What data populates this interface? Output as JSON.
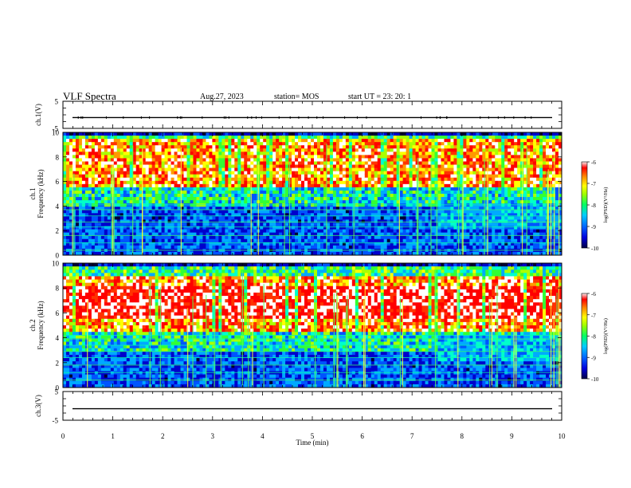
{
  "header": {
    "title": "VLF Spectra",
    "date": "Aug.27, 2023",
    "station": "station= MOS",
    "start": "start  UT  =   23: 20: 1"
  },
  "chart_data": [
    {
      "type": "line",
      "panel": "ch1-waveform",
      "ylabel": "ch.1(V)",
      "ylim": [
        -5,
        5
      ],
      "yticks": [
        "5",
        "-5"
      ],
      "series": [
        {
          "values": "flat near -1 V with small spikes"
        }
      ],
      "baseline": -1
    },
    {
      "type": "heatmap",
      "panel": "ch1-spectrogram",
      "ylabel": "ch.1\nFrequency (kHz)",
      "ylim": [
        0,
        10
      ],
      "yticks": [
        "0",
        "2",
        "4",
        "6",
        "8",
        "10"
      ],
      "xlim": [
        0,
        10
      ],
      "colorbar": {
        "label": "log(PSD)(V²/Hz)",
        "ticks": [
          "-6",
          "-7",
          "-8",
          "-9",
          "-10"
        ],
        "range": [
          -10,
          -6
        ]
      },
      "intense_band_khz": [
        5.5,
        9.5
      ],
      "horizontal_lines_khz": [
        0.4,
        1.0,
        1.6,
        2.3,
        2.7,
        3.2,
        3.7,
        4.1
      ]
    },
    {
      "type": "heatmap",
      "panel": "ch2-spectrogram",
      "ylabel": "ch.2\nFrequency (kHz)",
      "ylim": [
        0,
        10
      ],
      "yticks": [
        "0",
        "2",
        "4",
        "6",
        "8",
        "10"
      ],
      "xlim": [
        0,
        10
      ],
      "colorbar": {
        "label": "log(PSD)(V²/Hz)",
        "ticks": [
          "-6",
          "-7",
          "-8",
          "-9",
          "-10"
        ],
        "range": [
          -10,
          -6
        ]
      },
      "intense_band_khz": [
        4.5,
        9.0
      ],
      "horizontal_lines_khz": [
        0.6,
        1.2,
        1.8,
        2.4,
        2.9,
        3.4,
        3.9,
        4.2
      ]
    },
    {
      "type": "line",
      "panel": "ch3-waveform",
      "ylabel": "ch.3(V)",
      "ylim": [
        -5,
        5
      ],
      "yticks": [
        "5",
        "-5"
      ],
      "baseline": -1
    }
  ],
  "xaxis": {
    "label": "Time  (min)",
    "ticks": [
      "0",
      "1",
      "2",
      "3",
      "4",
      "5",
      "6",
      "7",
      "8",
      "9",
      "10"
    ]
  },
  "colors": {
    "colormap": [
      "#000033",
      "#0000cc",
      "#0055ff",
      "#00aaff",
      "#00ffcc",
      "#33ff33",
      "#aaff00",
      "#ffff00",
      "#ff9900",
      "#ff3300",
      "#ff0000",
      "#ffffff"
    ]
  }
}
